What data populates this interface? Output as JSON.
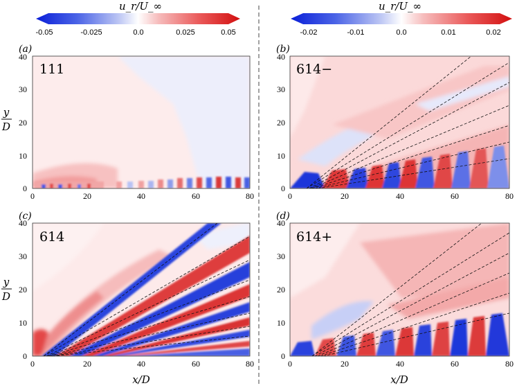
{
  "colorbars": [
    {
      "title": "u_r/U_∞",
      "ticks": [
        "-0.05",
        "-0.025",
        "0.0",
        "0.025",
        "0.05"
      ]
    },
    {
      "title": "u_r/U_∞",
      "ticks": [
        "-0.02",
        "-0.01",
        "0.0",
        "0.01",
        "0.02"
      ]
    }
  ],
  "x_ticks": [
    "0",
    "20",
    "40",
    "60",
    "80"
  ],
  "y_ticks": [
    "0",
    "10",
    "20",
    "30",
    "40"
  ],
  "xlabel": "x/D",
  "ylabel_top": "y",
  "ylabel_bottom": "D",
  "panels": [
    {
      "panel_label": "(a)",
      "case_label": "111"
    },
    {
      "panel_label": "(b)",
      "case_label": "614−"
    },
    {
      "panel_label": "(c)",
      "case_label": "614"
    },
    {
      "panel_label": "(d)",
      "case_label": "614+"
    }
  ],
  "chart_data": {
    "type": "heatmap",
    "quantity": "u_r/U_∞",
    "xlabel": "x/D",
    "ylabel": "y/D",
    "xlim": [
      0,
      80
    ],
    "ylim": [
      0,
      40
    ],
    "panels": [
      {
        "id": "a",
        "case": "111",
        "clim": [
          -0.05,
          0.05
        ],
        "rays": []
      },
      {
        "id": "b",
        "case": "614−",
        "clim": [
          -0.02,
          0.02
        ],
        "rays": [
          [
            6.0,
            66.0
          ],
          [
            6.0,
            80.0
          ],
          [
            7.0,
            80.0
          ],
          [
            7.5,
            80.0
          ],
          [
            8.0,
            80.0
          ],
          [
            9.0,
            80.0
          ],
          [
            10.0,
            80.0
          ]
        ],
        "ray_ends_y": [
          40,
          38,
          32,
          25,
          19,
          14,
          9
        ]
      },
      {
        "id": "c",
        "case": "614",
        "clim": [
          -0.05,
          0.05
        ],
        "rays": [
          [
            4.0,
            68.0
          ],
          [
            4.0,
            80.0
          ],
          [
            5.0,
            80.0
          ],
          [
            5.5,
            80.0
          ],
          [
            6.0,
            80.0
          ],
          [
            6.5,
            80.0
          ],
          [
            7.0,
            80.0
          ],
          [
            7.5,
            80.0
          ]
        ],
        "ray_ends_y": [
          40,
          36,
          29,
          23,
          18,
          13,
          9,
          6
        ]
      },
      {
        "id": "d",
        "case": "614+",
        "clim": [
          -0.02,
          0.02
        ],
        "rays": [
          [
            8.0,
            70.0
          ],
          [
            8.0,
            80.0
          ],
          [
            9.0,
            80.0
          ],
          [
            10.0,
            80.0
          ],
          [
            11.0,
            80.0
          ],
          [
            12.0,
            80.0
          ]
        ],
        "ray_ends_y": [
          40,
          37,
          31,
          25,
          19,
          13
        ]
      }
    ]
  }
}
